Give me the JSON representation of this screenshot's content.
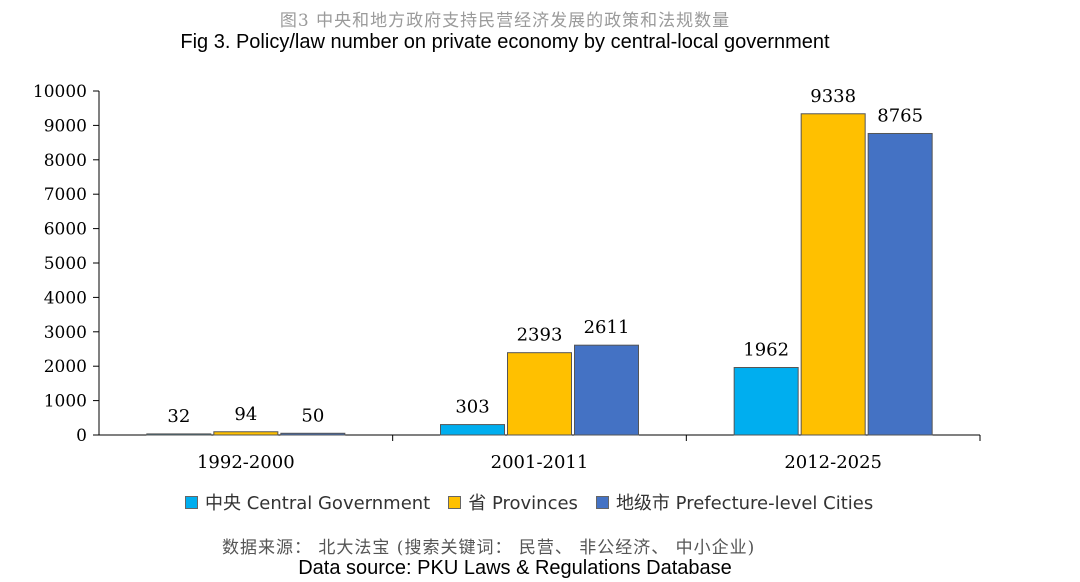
{
  "title_cn": "图3 中央和地方政府支持民营经济发展的政策和法规数量",
  "chart_data": {
    "type": "bar",
    "title": "Fig 3. Policy/law number on private economy by central-local government",
    "categories": [
      "1992-2000",
      "2001-2011",
      "2012-2025"
    ],
    "series": [
      {
        "name": "中央 Central Government",
        "color": "#00AEEF",
        "values": [
          32,
          303,
          1962
        ]
      },
      {
        "name": "省 Provinces",
        "color": "#FFC000",
        "values": [
          94,
          2393,
          9338
        ]
      },
      {
        "name": "地级市 Prefecture-level Cities",
        "color": "#4472C4",
        "values": [
          50,
          2611,
          8765
        ]
      }
    ],
    "ylim": [
      0,
      10000
    ],
    "yticks": [
      0,
      1000,
      2000,
      3000,
      4000,
      5000,
      6000,
      7000,
      8000,
      9000,
      10000
    ],
    "grid": false,
    "legend_position": "bottom",
    "data_labels": true
  },
  "source_cn": "数据来源： 北大法宝 (搜索关键词： 民营、 非公经济、 中小企业)",
  "source_en": "Data source: PKU Laws & Regulations Database"
}
